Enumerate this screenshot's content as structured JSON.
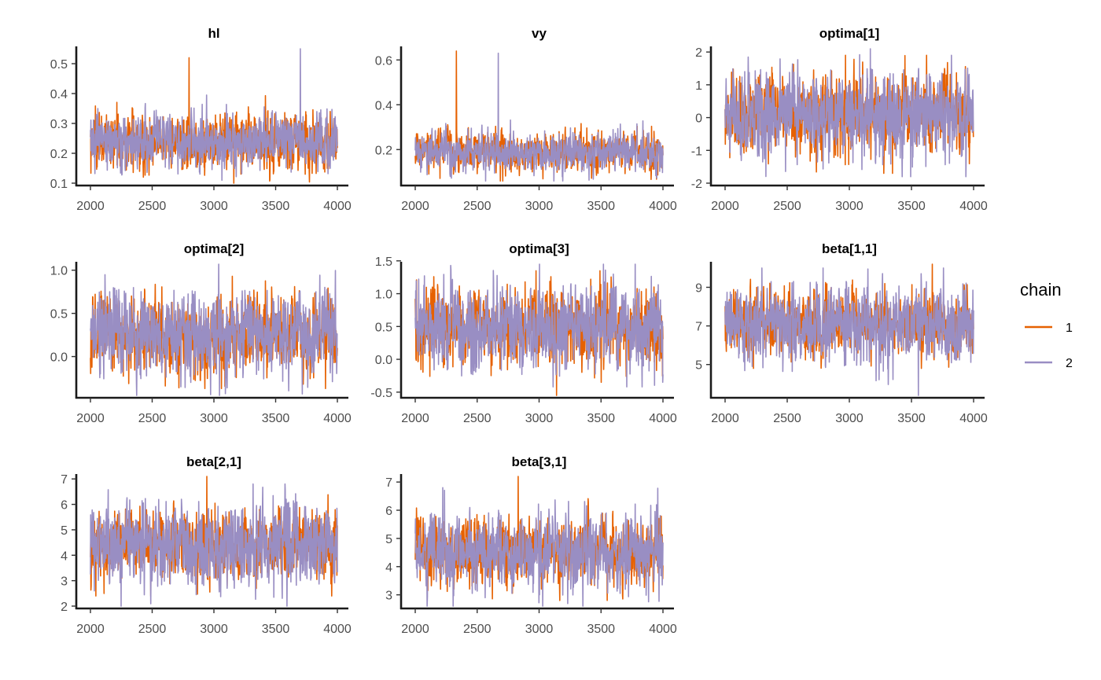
{
  "chart_data": {
    "type": "line",
    "legend": {
      "title": "chain",
      "position": "right",
      "entries": [
        {
          "label": "1",
          "color": "#E66101"
        },
        {
          "label": "2",
          "color": "#998EC3"
        }
      ]
    },
    "x_ticks": [
      "2000",
      "2500",
      "3000",
      "3500",
      "4000"
    ],
    "xlim": [
      2000,
      4000
    ],
    "iterations": 2000,
    "panels": [
      {
        "title": "hl",
        "ylim": [
          0.1,
          0.55
        ],
        "yticks": [
          0.1,
          0.2,
          0.3,
          0.4,
          0.5
        ],
        "ytick_labels": [
          "0.1",
          "0.2",
          "0.3",
          "0.4",
          "0.5"
        ],
        "chains": [
          {
            "chain": "1",
            "mean": 0.24,
            "min": 0.1,
            "max": 0.52
          },
          {
            "chain": "2",
            "mean": 0.24,
            "min": 0.11,
            "max": 0.55
          }
        ]
      },
      {
        "title": "vy",
        "ylim": [
          0.05,
          0.65
        ],
        "yticks": [
          0.2,
          0.4,
          0.6
        ],
        "ytick_labels": [
          "0.2",
          "0.4",
          "0.6"
        ],
        "chains": [
          {
            "chain": "1",
            "mean": 0.19,
            "min": 0.06,
            "max": 0.64
          },
          {
            "chain": "2",
            "mean": 0.19,
            "min": 0.06,
            "max": 0.63
          }
        ]
      },
      {
        "title": "optima[1]",
        "ylim": [
          -2,
          2.1
        ],
        "yticks": [
          -2,
          -1,
          0,
          1,
          2
        ],
        "ytick_labels": [
          "-2",
          "-1",
          "0",
          "1",
          "2"
        ],
        "chains": [
          {
            "chain": "1",
            "mean": 0.1,
            "min": -1.7,
            "max": 1.9
          },
          {
            "chain": "2",
            "mean": 0.1,
            "min": -1.8,
            "max": 2.1
          }
        ]
      },
      {
        "title": "optima[2]",
        "ylim": [
          -0.45,
          1.07
        ],
        "yticks": [
          0.0,
          0.5,
          1.0
        ],
        "ytick_labels": [
          "0.0",
          "0.5",
          "1.0"
        ],
        "chains": [
          {
            "chain": "1",
            "mean": 0.27,
            "min": -0.37,
            "max": 0.93
          },
          {
            "chain": "2",
            "mean": 0.27,
            "min": -0.45,
            "max": 1.07
          }
        ]
      },
      {
        "title": "optima[3]",
        "ylim": [
          -0.55,
          1.45
        ],
        "yticks": [
          -0.5,
          0.0,
          0.5,
          1.0,
          1.5
        ],
        "ytick_labels": [
          "-0.5",
          "0.0",
          "0.5",
          "1.0",
          "1.5"
        ],
        "chains": [
          {
            "chain": "1",
            "mean": 0.5,
            "min": -0.55,
            "max": 1.35
          },
          {
            "chain": "2",
            "mean": 0.5,
            "min": -0.42,
            "max": 1.45
          }
        ]
      },
      {
        "title": "beta[1,1]",
        "ylim": [
          3.4,
          10.2
        ],
        "yticks": [
          5,
          7,
          9
        ],
        "ytick_labels": [
          "5",
          "7",
          "9"
        ],
        "chains": [
          {
            "chain": "1",
            "mean": 7.1,
            "min": 4.8,
            "max": 10.2
          },
          {
            "chain": "2",
            "mean": 7.1,
            "min": 3.4,
            "max": 10.0
          }
        ]
      },
      {
        "title": "beta[2,1]",
        "ylim": [
          2,
          7.1
        ],
        "yticks": [
          2,
          3,
          4,
          5,
          6,
          7
        ],
        "ytick_labels": [
          "2",
          "3",
          "4",
          "5",
          "6",
          "7"
        ],
        "chains": [
          {
            "chain": "1",
            "mean": 4.4,
            "min": 2.4,
            "max": 7.1
          },
          {
            "chain": "2",
            "mean": 4.4,
            "min": 2.0,
            "max": 6.8
          }
        ]
      },
      {
        "title": "beta[3,1]",
        "ylim": [
          2.6,
          7.2
        ],
        "yticks": [
          3,
          4,
          5,
          6,
          7
        ],
        "ytick_labels": [
          "3",
          "4",
          "5",
          "6",
          "7"
        ],
        "chains": [
          {
            "chain": "1",
            "mean": 4.5,
            "min": 2.8,
            "max": 7.2
          },
          {
            "chain": "2",
            "mean": 4.5,
            "min": 2.6,
            "max": 6.8
          }
        ]
      }
    ]
  }
}
